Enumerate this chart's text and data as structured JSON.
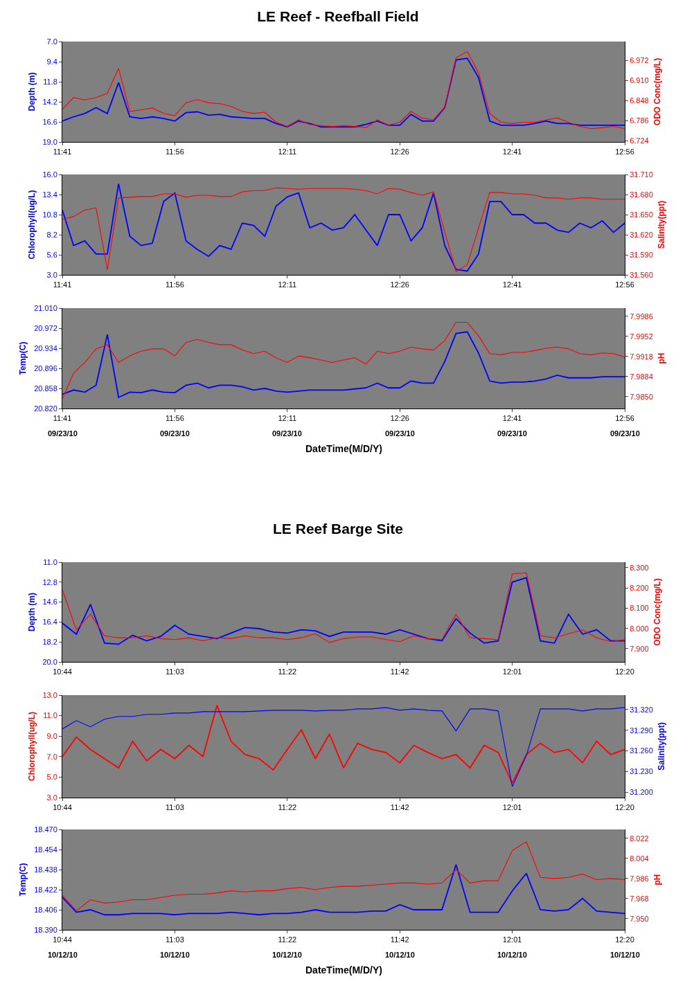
{
  "chart_data": [
    {
      "type": "line",
      "title": "LE Reef - Reefball Field",
      "ylabel": "Depth (m)",
      "y2label": "ODO Conc(mg/L)",
      "x": [
        11.683,
        11.708,
        11.733,
        11.758,
        11.783,
        11.808,
        11.833,
        11.858,
        11.883,
        11.908,
        11.933,
        11.958,
        11.983,
        12.008,
        12.033,
        12.058,
        12.083,
        12.108,
        12.133,
        12.158,
        12.183,
        12.208,
        12.233,
        12.258,
        12.283,
        12.308,
        12.333,
        12.358,
        12.383,
        12.408,
        12.433,
        12.458,
        12.483,
        12.508,
        12.533,
        12.558,
        12.583,
        12.608,
        12.633,
        12.658,
        12.683,
        12.708,
        12.733,
        12.758,
        12.783,
        12.808,
        12.833,
        12.858,
        12.883,
        12.908,
        12.933
      ],
      "xlim": [
        11.683,
        12.933
      ],
      "xticks": [
        {
          "value": 11.683,
          "label": "11:41"
        },
        {
          "value": 11.933,
          "label": "11:56"
        },
        {
          "value": 12.183,
          "label": "12:11"
        },
        {
          "value": 12.433,
          "label": "12:26"
        },
        {
          "value": 12.683,
          "label": "12:41"
        },
        {
          "value": 12.933,
          "label": "12:56"
        }
      ],
      "ylim": [
        19,
        7
      ],
      "yticks": [
        {
          "value": 7,
          "label": "7.0"
        },
        9.4,
        11.8,
        14.2,
        16.6,
        {
          "value": 19,
          "label": "19.0"
        }
      ],
      "y2lim": [
        6.72,
        7.03
      ],
      "y2ticks": [
        6.724,
        6.786,
        6.848,
        {
          "value": 6.91,
          "label": "6.910"
        },
        6.972
      ],
      "series": [
        {
          "color": "#0000ff",
          "values": [
            16.5,
            16.0,
            15.6,
            14.9,
            15.6,
            11.9,
            16.0,
            16.2,
            16.0,
            16.2,
            16.5,
            15.5,
            15.4,
            15.8,
            15.7,
            16.0,
            16.1,
            16.2,
            16.2,
            16.8,
            17.2,
            16.5,
            16.8,
            17.2,
            17.2,
            17.2,
            17.2,
            16.9,
            16.5,
            17.0,
            17.0,
            15.7,
            16.5,
            16.5,
            14.9,
            9.2,
            9.0,
            11.3,
            16.5,
            17.0,
            17.0,
            17.0,
            16.8,
            16.5,
            16.8,
            16.8,
            17.0,
            17.0,
            17.0,
            17.0,
            17.0
          ]
        },
        {
          "color": "#ff0000",
          "axis": "y2",
          "values": [
            6.821,
            6.857,
            6.85,
            6.857,
            6.87,
            6.947,
            6.814,
            6.819,
            6.825,
            6.808,
            6.801,
            6.841,
            6.851,
            6.841,
            6.838,
            6.83,
            6.814,
            6.808,
            6.812,
            6.781,
            6.768,
            6.788,
            6.774,
            6.77,
            6.768,
            6.77,
            6.768,
            6.764,
            6.788,
            6.772,
            6.781,
            6.814,
            6.794,
            6.788,
            6.828,
            6.98,
            6.999,
            6.934,
            6.808,
            6.781,
            6.777,
            6.781,
            6.781,
            6.788,
            6.794,
            6.781,
            6.768,
            6.761,
            6.764,
            6.768,
            6.761
          ]
        }
      ]
    },
    {
      "type": "line",
      "ylabel": "Chlorophyll(ug/L)",
      "y2label": "Salinity(ppt)",
      "x": [
        11.683,
        11.708,
        11.733,
        11.758,
        11.783,
        11.808,
        11.833,
        11.858,
        11.883,
        11.908,
        11.933,
        11.958,
        11.983,
        12.008,
        12.033,
        12.058,
        12.083,
        12.108,
        12.133,
        12.158,
        12.183,
        12.208,
        12.233,
        12.258,
        12.283,
        12.308,
        12.333,
        12.358,
        12.383,
        12.408,
        12.433,
        12.458,
        12.483,
        12.508,
        12.533,
        12.558,
        12.583,
        12.608,
        12.633,
        12.658,
        12.683,
        12.708,
        12.733,
        12.758,
        12.783,
        12.808,
        12.833,
        12.858,
        12.883,
        12.908,
        12.933
      ],
      "xlim": [
        11.683,
        12.933
      ],
      "xticks": [
        {
          "value": 11.683,
          "label": "11:41"
        },
        {
          "value": 11.933,
          "label": "11:56"
        },
        {
          "value": 12.183,
          "label": "12:11"
        },
        {
          "value": 12.433,
          "label": "12:26"
        },
        {
          "value": 12.683,
          "label": "12:41"
        },
        {
          "value": 12.933,
          "label": "12:56"
        }
      ],
      "ylim": [
        3,
        16
      ],
      "yticks": [
        {
          "value": 3,
          "label": "3.0"
        },
        5.6,
        8.2,
        10.8,
        13.4,
        {
          "value": 16,
          "label": "16.0"
        }
      ],
      "y2lim": [
        31.56,
        31.71
      ],
      "y2ticks": [
        {
          "value": 31.56,
          "label": "31.560"
        },
        {
          "value": 31.59,
          "label": "31.590"
        },
        {
          "value": 31.62,
          "label": "31.620"
        },
        {
          "value": 31.65,
          "label": "31.650"
        },
        {
          "value": 31.68,
          "label": "31.680"
        },
        {
          "value": 31.71,
          "label": "31.710"
        }
      ],
      "series": [
        {
          "color": "#0000ff",
          "values": [
            11.4,
            6.8,
            7.4,
            5.7,
            5.7,
            14.8,
            8.0,
            6.8,
            7.1,
            12.5,
            13.6,
            7.4,
            6.3,
            5.4,
            6.8,
            6.3,
            9.7,
            9.4,
            8.0,
            11.9,
            13.1,
            13.6,
            9.1,
            9.7,
            8.8,
            9.1,
            10.8,
            8.8,
            6.8,
            10.8,
            10.8,
            7.4,
            9.1,
            13.6,
            6.8,
            3.7,
            3.5,
            5.7,
            12.5,
            12.5,
            10.8,
            10.8,
            9.7,
            9.7,
            8.8,
            8.5,
            9.7,
            9.1,
            10.0,
            8.5,
            9.7
          ]
        },
        {
          "color": "#ff0000",
          "axis": "y2",
          "values": [
            31.643,
            31.647,
            31.657,
            31.66,
            31.568,
            31.675,
            31.676,
            31.677,
            31.677,
            31.681,
            31.681,
            31.676,
            31.679,
            31.679,
            31.677,
            31.677,
            31.684,
            31.686,
            31.686,
            31.69,
            31.689,
            31.688,
            31.689,
            31.689,
            31.689,
            31.689,
            31.688,
            31.686,
            31.681,
            31.689,
            31.688,
            31.683,
            31.679,
            31.684,
            31.624,
            31.565,
            31.575,
            31.63,
            31.683,
            31.683,
            31.681,
            31.681,
            31.679,
            31.675,
            31.675,
            31.673,
            31.675,
            31.675,
            31.673,
            31.673,
            31.673
          ]
        }
      ]
    },
    {
      "type": "line",
      "ylabel": "Temp(C)",
      "y2label": "pH",
      "xlabel": "DateTime(M/D/Y)",
      "annotations": [
        "09/23/10",
        "09/23/10",
        "09/23/10",
        "09/23/10",
        "09/23/10",
        "09/23/10"
      ],
      "x": [
        11.683,
        11.708,
        11.733,
        11.758,
        11.783,
        11.808,
        11.833,
        11.858,
        11.883,
        11.908,
        11.933,
        11.958,
        11.983,
        12.008,
        12.033,
        12.058,
        12.083,
        12.108,
        12.133,
        12.158,
        12.183,
        12.208,
        12.233,
        12.258,
        12.283,
        12.308,
        12.333,
        12.358,
        12.383,
        12.408,
        12.433,
        12.458,
        12.483,
        12.508,
        12.533,
        12.558,
        12.583,
        12.608,
        12.633,
        12.658,
        12.683,
        12.708,
        12.733,
        12.758,
        12.783,
        12.808,
        12.833,
        12.858,
        12.883,
        12.908,
        12.933
      ],
      "xlim": [
        11.683,
        12.933
      ],
      "xticks": [
        {
          "value": 11.683,
          "label": "11:41"
        },
        {
          "value": 11.933,
          "label": "11:56"
        },
        {
          "value": 12.183,
          "label": "12:11"
        },
        {
          "value": 12.433,
          "label": "12:26"
        },
        {
          "value": 12.683,
          "label": "12:41"
        },
        {
          "value": 12.933,
          "label": "12:56"
        }
      ],
      "ylim": [
        20.82,
        21.01
      ],
      "yticks": [
        {
          "value": 20.82,
          "label": "20.820"
        },
        20.858,
        20.896,
        20.934,
        20.972,
        {
          "value": 21.01,
          "label": "21.010"
        }
      ],
      "y2lim": [
        7.983,
        8.0
      ],
      "y2ticks": [
        {
          "value": 7.985,
          "label": "7.9850"
        },
        7.9884,
        7.9918,
        7.9952,
        7.9986
      ],
      "series": [
        {
          "color": "#0000ff",
          "values": [
            20.847,
            20.855,
            20.851,
            20.864,
            20.96,
            20.841,
            20.851,
            20.85,
            20.855,
            20.851,
            20.85,
            20.864,
            20.868,
            20.859,
            20.864,
            20.864,
            20.861,
            20.855,
            20.858,
            20.853,
            20.851,
            20.853,
            20.855,
            20.855,
            20.855,
            20.855,
            20.857,
            20.859,
            20.868,
            20.859,
            20.859,
            20.872,
            20.868,
            20.868,
            20.909,
            20.962,
            20.965,
            20.925,
            20.872,
            20.868,
            20.87,
            20.87,
            20.872,
            20.876,
            20.883,
            20.878,
            20.878,
            20.878,
            20.88,
            20.88,
            20.88
          ]
        },
        {
          "color": "#ff0000",
          "axis": "y2",
          "values": [
            7.9846,
            7.989,
            7.9908,
            7.9931,
            7.9938,
            7.9908,
            7.9919,
            7.9927,
            7.9931,
            7.9931,
            7.9919,
            7.9942,
            7.9947,
            7.9942,
            7.9938,
            7.9938,
            7.9929,
            7.9923,
            7.9927,
            7.9916,
            7.9908,
            7.9919,
            7.9916,
            7.9912,
            7.9908,
            7.9912,
            7.9916,
            7.9905,
            7.9927,
            7.9923,
            7.9927,
            7.9934,
            7.9931,
            7.9929,
            7.9945,
            7.9976,
            7.9976,
            7.9953,
            7.9923,
            7.9921,
            7.9925,
            7.9925,
            7.9928,
            7.9932,
            7.9934,
            7.9931,
            7.9923,
            7.9921,
            7.9924,
            7.9923,
            7.9917
          ]
        }
      ]
    },
    {
      "type": "line",
      "title": "LE Reef Barge Site",
      "ylabel": "Depth (m)",
      "y2label": "ODO Conc(mg/L)",
      "x": [
        10.733,
        10.773,
        10.813,
        10.853,
        10.893,
        10.933,
        10.973,
        11.013,
        11.053,
        11.093,
        11.133,
        11.173,
        11.213,
        11.253,
        11.293,
        11.333,
        11.373,
        11.413,
        11.453,
        11.493,
        11.533,
        11.573,
        11.613,
        11.653,
        11.693,
        11.733,
        11.773,
        11.813,
        11.853,
        11.893,
        11.933,
        11.973,
        12.013,
        12.053,
        12.093,
        12.133,
        12.173,
        12.213,
        12.253,
        12.293,
        12.333
      ],
      "xlim": [
        10.733,
        12.333
      ],
      "xticks": [
        {
          "value": 10.733,
          "label": "10:44"
        },
        {
          "value": 11.053,
          "label": "11:03"
        },
        {
          "value": 11.373,
          "label": "11:22"
        },
        {
          "value": 11.693,
          "label": "11:42"
        },
        {
          "value": 12.013,
          "label": "12:01"
        },
        {
          "value": 12.333,
          "label": "12:20"
        }
      ],
      "ylim": [
        20,
        11
      ],
      "yticks": [
        {
          "value": 11,
          "label": "11.0"
        },
        12.8,
        14.6,
        16.4,
        18.2,
        {
          "value": 20,
          "label": "20.0"
        }
      ],
      "y2lim": [
        7.835,
        8.327
      ],
      "y2ticks": [
        {
          "value": 7.9,
          "label": "7.900"
        },
        {
          "value": 8.0,
          "label": "8.000"
        },
        {
          "value": 8.1,
          "label": "8.100"
        },
        {
          "value": 8.2,
          "label": "8.200"
        },
        {
          "value": 8.3,
          "label": "8.300"
        }
      ],
      "series": [
        {
          "color": "#0000ff",
          "values": [
            16.5,
            17.5,
            14.8,
            18.3,
            18.4,
            17.6,
            18.1,
            17.7,
            16.7,
            17.5,
            17.7,
            17.9,
            17.4,
            16.9,
            17.0,
            17.3,
            17.4,
            17.1,
            17.2,
            17.7,
            17.3,
            17.3,
            17.3,
            17.5,
            17.1,
            17.5,
            17.9,
            18.1,
            16.1,
            17.4,
            18.3,
            18.1,
            12.8,
            12.4,
            18.1,
            18.3,
            15.7,
            17.5,
            17.1,
            18.1,
            18.1
          ]
        },
        {
          "color": "#ff0000",
          "axis": "y2",
          "values": [
            8.191,
            7.993,
            8.071,
            7.964,
            7.954,
            7.954,
            7.964,
            7.95,
            7.945,
            7.954,
            7.939,
            7.954,
            7.95,
            7.964,
            7.954,
            7.954,
            7.945,
            7.954,
            7.974,
            7.931,
            7.95,
            7.958,
            7.958,
            7.945,
            7.935,
            7.964,
            7.95,
            7.945,
            8.071,
            7.954,
            7.95,
            7.945,
            8.269,
            8.275,
            7.964,
            7.954,
            7.974,
            7.993,
            7.954,
            7.935,
            7.945
          ]
        }
      ]
    },
    {
      "type": "line",
      "ylabel": "Chlorophyll(ug/L)",
      "y2label": "Salinity(ppt)",
      "x": [
        10.733,
        10.773,
        10.813,
        10.853,
        10.893,
        10.933,
        10.973,
        11.013,
        11.053,
        11.093,
        11.133,
        11.173,
        11.213,
        11.253,
        11.293,
        11.333,
        11.373,
        11.413,
        11.453,
        11.493,
        11.533,
        11.573,
        11.613,
        11.653,
        11.693,
        11.733,
        11.773,
        11.813,
        11.853,
        11.893,
        11.933,
        11.973,
        12.013,
        12.053,
        12.093,
        12.133,
        12.173,
        12.213,
        12.253,
        12.293,
        12.333
      ],
      "xlim": [
        10.733,
        12.333
      ],
      "xticks": [
        {
          "value": 10.733,
          "label": "10:44"
        },
        {
          "value": 11.053,
          "label": "11:03"
        },
        {
          "value": 11.373,
          "label": "11:22"
        },
        {
          "value": 11.693,
          "label": "11:42"
        },
        {
          "value": 12.013,
          "label": "12:01"
        },
        {
          "value": 12.333,
          "label": "12:20"
        }
      ],
      "ylim": [
        3,
        13
      ],
      "yticks": [
        {
          "value": 3,
          "label": "3.0"
        },
        {
          "value": 5,
          "label": "5.0"
        },
        {
          "value": 7,
          "label": "7.0"
        },
        {
          "value": 9,
          "label": "9.0"
        },
        {
          "value": 11,
          "label": "11.0"
        },
        {
          "value": 13,
          "label": "13.0"
        }
      ],
      "y2lim": [
        31.192,
        31.341
      ],
      "y2ticks": [
        {
          "value": 31.2,
          "label": "31.200"
        },
        {
          "value": 31.23,
          "label": "31.230"
        },
        {
          "value": 31.26,
          "label": "31.260"
        },
        {
          "value": 31.29,
          "label": "31.290"
        },
        {
          "value": 31.32,
          "label": "31.320"
        }
      ],
      "series": [
        {
          "color": "#ff0000",
          "values": [
            7.0,
            8.9,
            7.7,
            6.8,
            5.9,
            8.5,
            6.6,
            7.7,
            6.8,
            8.1,
            7.0,
            12.0,
            8.5,
            7.2,
            6.8,
            5.7,
            7.7,
            9.6,
            6.8,
            9.2,
            5.9,
            8.3,
            7.7,
            7.4,
            6.4,
            8.1,
            7.4,
            6.8,
            7.2,
            5.9,
            8.1,
            7.4,
            4.4,
            7.2,
            8.3,
            7.4,
            7.7,
            6.4,
            8.5,
            7.2,
            7.7
          ]
        },
        {
          "color": "#0000ff",
          "axis": "y2",
          "values": [
            31.292,
            31.304,
            31.295,
            31.306,
            31.31,
            31.31,
            31.313,
            31.313,
            31.315,
            31.315,
            31.317,
            31.317,
            31.317,
            31.317,
            31.318,
            31.319,
            31.319,
            31.319,
            31.318,
            31.319,
            31.319,
            31.321,
            31.321,
            31.323,
            31.319,
            31.321,
            31.319,
            31.318,
            31.289,
            31.321,
            31.321,
            31.318,
            31.208,
            31.253,
            31.321,
            31.321,
            31.321,
            31.318,
            31.321,
            31.321,
            31.323
          ]
        }
      ]
    },
    {
      "type": "line",
      "ylabel": "Temp(C)",
      "y2label": "pH",
      "xlabel": "DateTime(M/D/Y)",
      "annotations": [
        "10/12/10",
        "10/12/10",
        "10/12/10",
        "10/12/10",
        "10/12/10",
        "10/12/10"
      ],
      "x": [
        10.733,
        10.773,
        10.813,
        10.853,
        10.893,
        10.933,
        10.973,
        11.013,
        11.053,
        11.093,
        11.133,
        11.173,
        11.213,
        11.253,
        11.293,
        11.333,
        11.373,
        11.413,
        11.453,
        11.493,
        11.533,
        11.573,
        11.613,
        11.653,
        11.693,
        11.733,
        11.773,
        11.813,
        11.853,
        11.893,
        11.933,
        11.973,
        12.013,
        12.053,
        12.093,
        12.133,
        12.173,
        12.213,
        12.253,
        12.293,
        12.333
      ],
      "xlim": [
        10.733,
        12.333
      ],
      "xticks": [
        {
          "value": 10.733,
          "label": "10:44"
        },
        {
          "value": 11.053,
          "label": "11:03"
        },
        {
          "value": 11.373,
          "label": "11:22"
        },
        {
          "value": 11.693,
          "label": "11:42"
        },
        {
          "value": 12.013,
          "label": "12:01"
        },
        {
          "value": 12.333,
          "label": "12:20"
        }
      ],
      "ylim": [
        18.39,
        18.47
      ],
      "yticks": [
        {
          "value": 18.39,
          "label": "18.390"
        },
        18.406,
        18.422,
        18.438,
        18.454,
        {
          "value": 18.47,
          "label": "18.470"
        }
      ],
      "y2lim": [
        7.94,
        8.03
      ],
      "y2ticks": [
        {
          "value": 7.95,
          "label": "7.950"
        },
        7.968,
        7.986,
        8.004,
        8.022
      ],
      "series": [
        {
          "color": "#0000ff",
          "values": [
            18.416,
            18.404,
            18.406,
            18.402,
            18.402,
            18.403,
            18.403,
            18.403,
            18.402,
            18.403,
            18.403,
            18.403,
            18.404,
            18.403,
            18.402,
            18.403,
            18.403,
            18.404,
            18.406,
            18.404,
            18.404,
            18.404,
            18.405,
            18.405,
            18.41,
            18.406,
            18.406,
            18.406,
            18.442,
            18.404,
            18.404,
            18.404,
            18.421,
            18.435,
            18.406,
            18.405,
            18.406,
            18.415,
            18.405,
            18.404,
            18.403
          ]
        },
        {
          "color": "#ff0000",
          "axis": "y2",
          "values": [
            7.971,
            7.957,
            7.967,
            7.964,
            7.965,
            7.967,
            7.967,
            7.969,
            7.971,
            7.972,
            7.972,
            7.973,
            7.975,
            7.974,
            7.975,
            7.975,
            7.977,
            7.978,
            7.976,
            7.978,
            7.979,
            7.979,
            7.98,
            7.981,
            7.982,
            7.982,
            7.981,
            7.982,
            7.994,
            7.982,
            7.984,
            7.984,
            8.011,
            8.019,
            7.987,
            7.986,
            7.987,
            7.99,
            7.985,
            7.986,
            7.985
          ]
        }
      ]
    }
  ]
}
